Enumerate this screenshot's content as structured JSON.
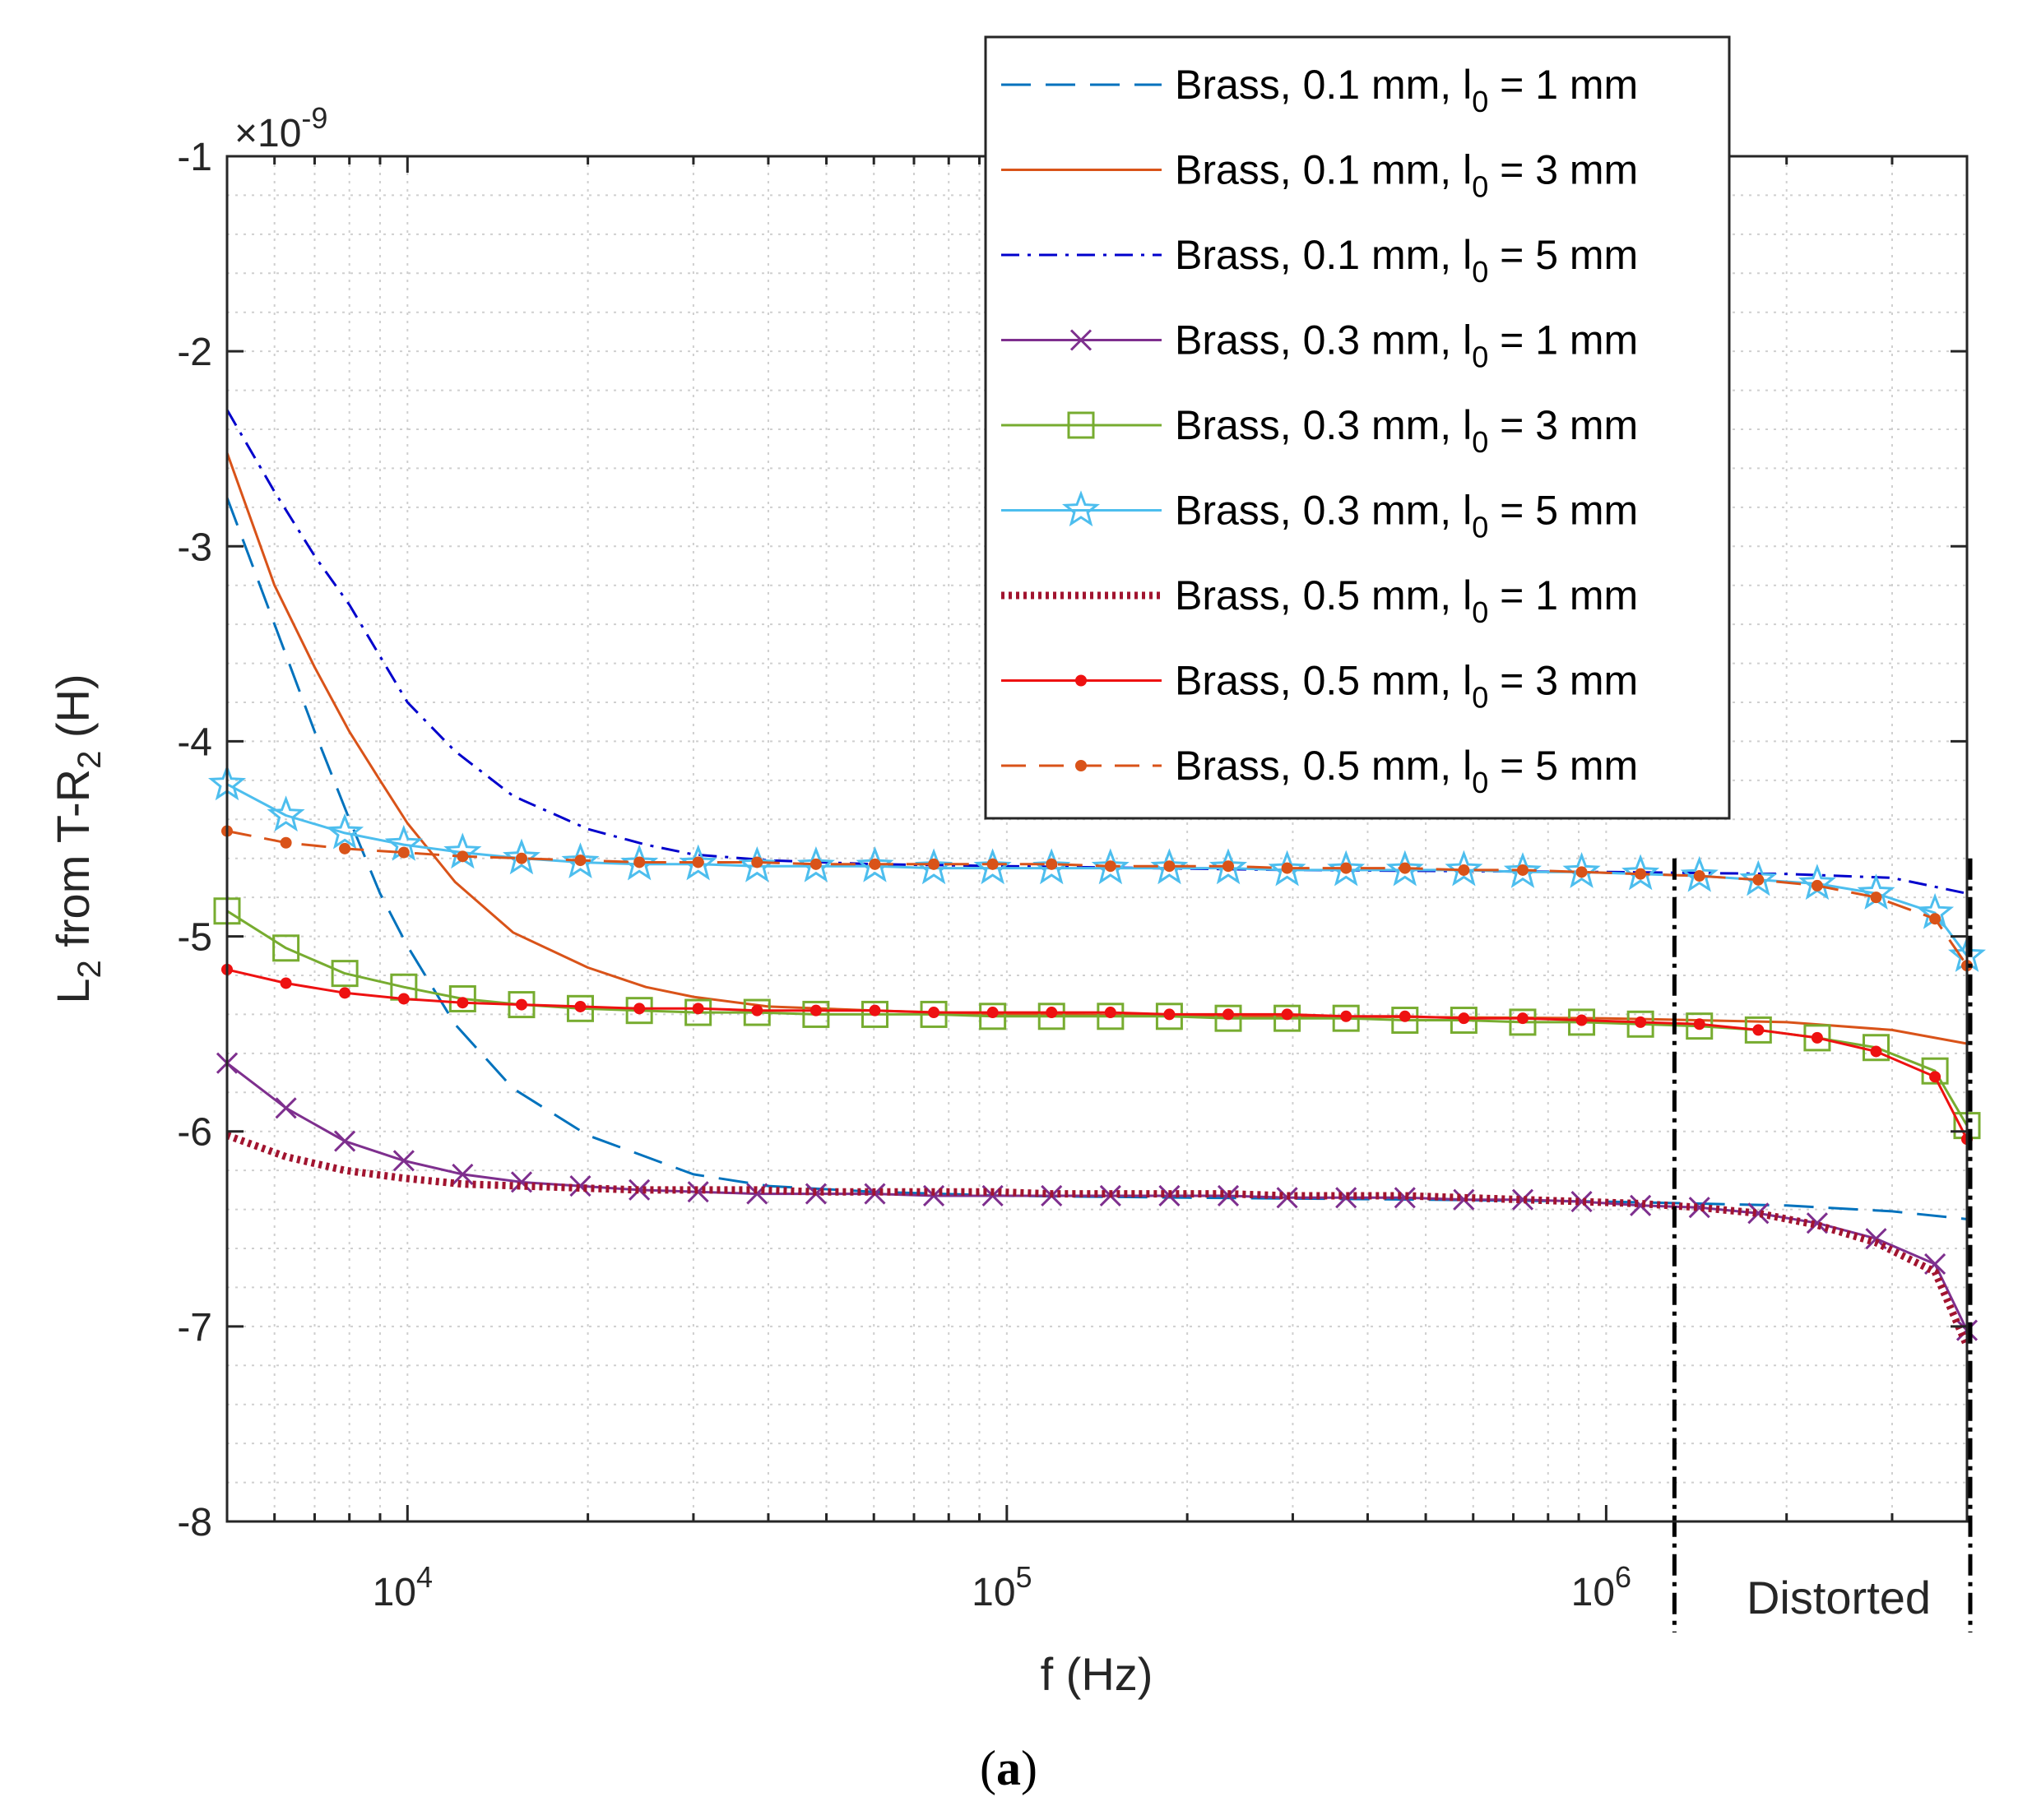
{
  "chart_data": {
    "type": "line",
    "xscale": "log",
    "xlim": [
      5000,
      4000000
    ],
    "ylim": [
      -8,
      -1
    ],
    "y_multiplier": "×10",
    "y_exponent": "-9",
    "xlabel": "f (Hz)",
    "ylabel": {
      "main": "L",
      "sub1": "2",
      "mid": " from T-R",
      "sub2": "2",
      "end": " (H)"
    },
    "yticks": [
      -1,
      -2,
      -3,
      -4,
      -5,
      -6,
      -7,
      -8
    ],
    "xticks": [
      {
        "value": 10000,
        "base": "10",
        "exp": "4"
      },
      {
        "value": 100000,
        "base": "10",
        "exp": "5"
      },
      {
        "value": 1000000,
        "base": "10",
        "exp": "6"
      }
    ],
    "grid": true,
    "distorted_boundary_x": 1300000,
    "distorted_label": "Distorted",
    "caption": "(a)",
    "series": [
      {
        "name": "Brass, 0.1 mm, l0 = 1 mm",
        "label_main": "Brass, 0.1 mm, l",
        "label_sub": "0",
        "label_end": " = 1 mm",
        "color": "#0072BD",
        "dash": "36,18",
        "width": 3,
        "marker": "none",
        "x": [
          5000,
          6000,
          7000,
          8000,
          9000,
          10000,
          12000,
          15000,
          20000,
          30000,
          40000,
          60000,
          100000,
          200000,
          500000,
          1000000,
          2000000,
          3000000,
          4000000
        ],
        "y": [
          -2.75,
          -3.4,
          -3.95,
          -4.4,
          -4.78,
          -5.05,
          -5.45,
          -5.78,
          -6.02,
          -6.22,
          -6.28,
          -6.31,
          -6.33,
          -6.34,
          -6.35,
          -6.36,
          -6.38,
          -6.41,
          -6.45
        ]
      },
      {
        "name": "Brass, 0.1 mm, l0 = 3 mm",
        "label_main": "Brass, 0.1 mm, l",
        "label_sub": "0",
        "label_end": " = 3 mm",
        "color": "#D95319",
        "dash": "",
        "width": 3,
        "marker": "none",
        "x": [
          5000,
          6000,
          7000,
          8000,
          9000,
          10000,
          12000,
          15000,
          20000,
          25000,
          30000,
          40000,
          60000,
          100000,
          300000,
          1000000,
          2000000,
          3000000,
          4000000
        ],
        "y": [
          -2.52,
          -3.2,
          -3.62,
          -3.95,
          -4.2,
          -4.42,
          -4.72,
          -4.98,
          -5.16,
          -5.26,
          -5.31,
          -5.36,
          -5.38,
          -5.4,
          -5.41,
          -5.42,
          -5.44,
          -5.48,
          -5.55
        ]
      },
      {
        "name": "Brass, 0.1 mm, l0 = 5 mm",
        "label_main": "Brass, 0.1 mm, l",
        "label_sub": "0",
        "label_end": " = 5 mm",
        "color": "#0000CC",
        "dash": "22,10,4,10",
        "width": 3,
        "marker": "none",
        "x": [
          5000,
          6000,
          7000,
          8000,
          10000,
          12000,
          15000,
          20000,
          25000,
          30000,
          40000,
          60000,
          100000,
          300000,
          1000000,
          2000000,
          3000000,
          4000000
        ],
        "y": [
          -2.3,
          -2.72,
          -3.05,
          -3.3,
          -3.8,
          -4.05,
          -4.28,
          -4.45,
          -4.53,
          -4.58,
          -4.61,
          -4.63,
          -4.64,
          -4.66,
          -4.67,
          -4.68,
          -4.7,
          -4.78
        ]
      },
      {
        "name": "Brass, 0.3 mm, l0 = 1 mm",
        "label_main": "Brass, 0.3 mm, l",
        "label_sub": "0",
        "label_end": " = 1 mm",
        "color": "#7E2F8E",
        "dash": "",
        "width": 3,
        "marker": "x",
        "x": [
          5000,
          6270,
          7860,
          9860,
          12360,
          15500,
          19430,
          24370,
          30550,
          38310,
          48040,
          60240,
          75530,
          94710,
          118760,
          148910,
          186720,
          234130,
          293580,
          368130,
          461600,
          578800,
          725760,
          910040,
          1141100,
          1430900,
          1794200,
          2249700,
          2821000,
          3537300,
          4000000
        ],
        "y": [
          -5.65,
          -5.88,
          -6.05,
          -6.15,
          -6.22,
          -6.26,
          -6.28,
          -6.3,
          -6.31,
          -6.32,
          -6.32,
          -6.32,
          -6.33,
          -6.33,
          -6.33,
          -6.33,
          -6.33,
          -6.33,
          -6.34,
          -6.34,
          -6.34,
          -6.35,
          -6.35,
          -6.36,
          -6.38,
          -6.39,
          -6.42,
          -6.47,
          -6.55,
          -6.68,
          -7.02
        ]
      },
      {
        "name": "Brass, 0.3 mm, l0 = 3 mm",
        "label_main": "Brass, 0.3 mm, l",
        "label_sub": "0",
        "label_end": " = 3 mm",
        "color": "#77AC30",
        "dash": "",
        "width": 3,
        "marker": "square",
        "x": [
          5000,
          6270,
          7860,
          9860,
          12360,
          15500,
          19430,
          24370,
          30550,
          38310,
          48040,
          60240,
          75530,
          94710,
          118760,
          148910,
          186720,
          234130,
          293580,
          368130,
          461600,
          578800,
          725760,
          910040,
          1141100,
          1430900,
          1794200,
          2249700,
          2821000,
          3537300,
          4000000
        ],
        "y": [
          -4.87,
          -5.06,
          -5.19,
          -5.26,
          -5.32,
          -5.35,
          -5.37,
          -5.38,
          -5.39,
          -5.39,
          -5.4,
          -5.4,
          -5.4,
          -5.41,
          -5.41,
          -5.41,
          -5.41,
          -5.42,
          -5.42,
          -5.42,
          -5.43,
          -5.43,
          -5.44,
          -5.44,
          -5.45,
          -5.46,
          -5.48,
          -5.52,
          -5.57,
          -5.69,
          -5.97
        ]
      },
      {
        "name": "Brass, 0.3 mm, l0 = 5 mm",
        "label_main": "Brass, 0.3 mm, l",
        "label_sub": "0",
        "label_end": " = 5 mm",
        "color": "#4DBEEE",
        "dash": "",
        "width": 3,
        "marker": "star",
        "x": [
          5000,
          6270,
          7860,
          9860,
          12360,
          15500,
          19430,
          24370,
          30550,
          38310,
          48040,
          60240,
          75530,
          94710,
          118760,
          148910,
          186720,
          234130,
          293580,
          368130,
          461600,
          578800,
          725760,
          910040,
          1141100,
          1430900,
          1794200,
          2249700,
          2821000,
          3537300,
          4000000
        ],
        "y": [
          -4.22,
          -4.38,
          -4.47,
          -4.53,
          -4.57,
          -4.6,
          -4.62,
          -4.63,
          -4.63,
          -4.64,
          -4.64,
          -4.64,
          -4.65,
          -4.65,
          -4.65,
          -4.65,
          -4.65,
          -4.65,
          -4.66,
          -4.66,
          -4.66,
          -4.66,
          -4.67,
          -4.67,
          -4.68,
          -4.69,
          -4.71,
          -4.73,
          -4.78,
          -4.88,
          -5.1
        ]
      },
      {
        "name": "Brass, 0.5 mm, l0 = 1 mm",
        "label_main": "Brass, 0.5 mm, l",
        "label_sub": "0",
        "label_end": " = 1 mm",
        "color": "#A2142F",
        "dash": "4,5",
        "width": 9,
        "marker": "none",
        "x": [
          5000,
          6270,
          7860,
          9860,
          12360,
          15500,
          19430,
          24370,
          30550,
          38310,
          48040,
          60240,
          75530,
          94710,
          118760,
          148910,
          186720,
          234130,
          293580,
          368130,
          461600,
          578800,
          725760,
          910040,
          1141100,
          1430900,
          1794200,
          2249700,
          2821000,
          3537300,
          4000000
        ],
        "y": [
          -6.02,
          -6.13,
          -6.2,
          -6.24,
          -6.27,
          -6.28,
          -6.29,
          -6.3,
          -6.3,
          -6.3,
          -6.31,
          -6.31,
          -6.31,
          -6.31,
          -6.32,
          -6.32,
          -6.32,
          -6.32,
          -6.33,
          -6.33,
          -6.33,
          -6.34,
          -6.35,
          -6.36,
          -6.37,
          -6.39,
          -6.42,
          -6.48,
          -6.57,
          -6.72,
          -7.1
        ]
      },
      {
        "name": "Brass, 0.5 mm, l0 = 3 mm",
        "label_main": "Brass, 0.5 mm, l",
        "label_sub": "0",
        "label_end": " = 3 mm",
        "color": "#EE1111",
        "dash": "",
        "width": 3,
        "marker": "dot",
        "x": [
          5000,
          6270,
          7860,
          9860,
          12360,
          15500,
          19430,
          24370,
          30550,
          38310,
          48040,
          60240,
          75530,
          94710,
          118760,
          148910,
          186720,
          234130,
          293580,
          368130,
          461600,
          578800,
          725760,
          910040,
          1141100,
          1430900,
          1794200,
          2249700,
          2821000,
          3537300,
          4000000
        ],
        "y": [
          -5.17,
          -5.24,
          -5.29,
          -5.32,
          -5.34,
          -5.35,
          -5.36,
          -5.37,
          -5.37,
          -5.38,
          -5.38,
          -5.38,
          -5.39,
          -5.39,
          -5.39,
          -5.39,
          -5.4,
          -5.4,
          -5.4,
          -5.41,
          -5.41,
          -5.42,
          -5.42,
          -5.43,
          -5.44,
          -5.45,
          -5.48,
          -5.52,
          -5.59,
          -5.72,
          -6.04
        ]
      },
      {
        "name": "Brass, 0.5 mm, l0 = 5 mm",
        "label_main": "Brass, 0.5 mm, l",
        "label_sub": "0",
        "label_end": " = 5 mm",
        "color": "#D95319",
        "dash": "30,16",
        "width": 3,
        "marker": "dot",
        "x": [
          5000,
          6270,
          7860,
          9860,
          12360,
          15500,
          19430,
          24370,
          30550,
          38310,
          48040,
          60240,
          75530,
          94710,
          118760,
          148910,
          186720,
          234130,
          293580,
          368130,
          461600,
          578800,
          725760,
          910040,
          1141100,
          1430900,
          1794200,
          2249700,
          2821000,
          3537300,
          4000000
        ],
        "y": [
          -4.46,
          -4.52,
          -4.55,
          -4.57,
          -4.59,
          -4.6,
          -4.61,
          -4.62,
          -4.62,
          -4.62,
          -4.63,
          -4.63,
          -4.63,
          -4.63,
          -4.63,
          -4.64,
          -4.64,
          -4.64,
          -4.65,
          -4.65,
          -4.65,
          -4.66,
          -4.66,
          -4.67,
          -4.68,
          -4.69,
          -4.71,
          -4.74,
          -4.8,
          -4.91,
          -5.15
        ]
      }
    ]
  }
}
